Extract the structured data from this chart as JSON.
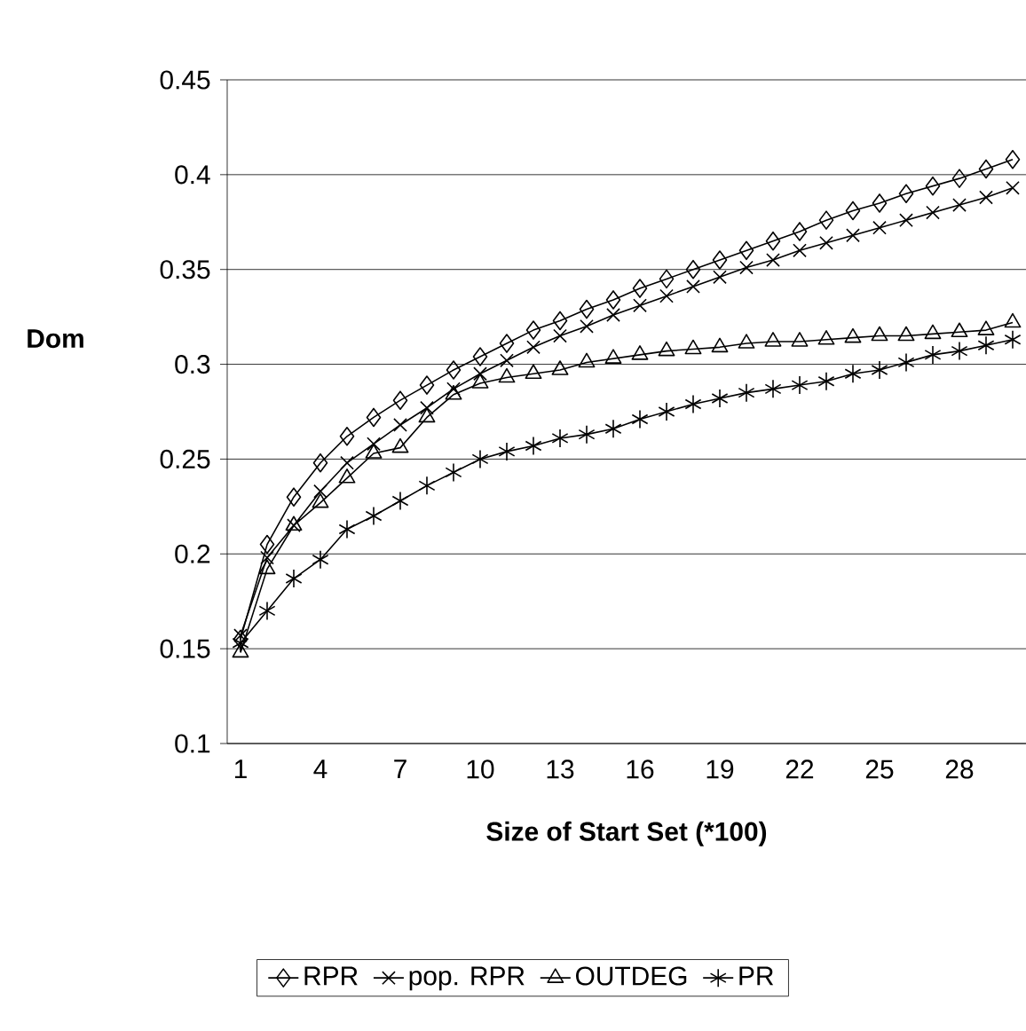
{
  "chart_data": {
    "type": "line",
    "xlabel": "Size of Start Set (*100)",
    "ylabel": "Dom",
    "categories": [
      "1",
      null,
      null,
      "4",
      null,
      null,
      "7",
      null,
      null,
      "10",
      null,
      null,
      "13",
      null,
      null,
      "16",
      null,
      null,
      "19",
      null,
      null,
      "22",
      null,
      null,
      "25",
      null,
      null,
      "28",
      null,
      null
    ],
    "series": [
      {
        "name": "RPR",
        "color": "#000000",
        "marker": "diamond",
        "values": [
          0.155,
          0.205,
          0.23,
          0.248,
          0.262,
          0.272,
          0.281,
          0.289,
          0.297,
          0.304,
          0.311,
          0.318,
          0.323,
          0.329,
          0.334,
          0.34,
          0.345,
          0.35,
          0.355,
          0.36,
          0.365,
          0.37,
          0.376,
          0.381,
          0.385,
          0.39,
          0.394,
          0.398,
          0.403,
          0.408
        ]
      },
      {
        "name": "pop. RPR",
        "color": "#000000",
        "marker": "cross",
        "values": [
          0.157,
          0.198,
          0.215,
          0.233,
          0.248,
          0.258,
          0.268,
          0.277,
          0.287,
          0.295,
          0.302,
          0.309,
          0.315,
          0.32,
          0.326,
          0.331,
          0.336,
          0.341,
          0.346,
          0.351,
          0.355,
          0.36,
          0.364,
          0.368,
          0.372,
          0.376,
          0.38,
          0.384,
          0.388,
          0.393
        ]
      },
      {
        "name": "OUTDEG",
        "color": "#000000",
        "marker": "triangle",
        "values": [
          0.148,
          0.192,
          0.215,
          0.227,
          0.24,
          0.253,
          0.256,
          0.272,
          0.284,
          0.29,
          0.293,
          0.295,
          0.297,
          0.301,
          0.303,
          0.305,
          0.307,
          0.308,
          0.309,
          0.311,
          0.312,
          0.312,
          0.313,
          0.314,
          0.315,
          0.315,
          0.316,
          0.317,
          0.318,
          0.322
        ]
      },
      {
        "name": "PR",
        "color": "#000000",
        "marker": "cross",
        "values": [
          0.153,
          0.17,
          0.187,
          0.197,
          0.213,
          0.22,
          0.228,
          0.236,
          0.243,
          0.25,
          0.254,
          0.257,
          0.261,
          0.263,
          0.266,
          0.271,
          0.275,
          0.279,
          0.282,
          0.285,
          0.287,
          0.289,
          0.291,
          0.295,
          0.297,
          0.301,
          0.305,
          0.307,
          0.31,
          0.313
        ]
      }
    ],
    "ylim": [
      0.1,
      0.45
    ],
    "yticks": [
      0.1,
      0.15,
      0.2,
      0.25,
      0.3,
      0.35,
      0.4,
      0.45
    ],
    "grid": "y",
    "legend": "bottom",
    "line_style": "solid"
  }
}
